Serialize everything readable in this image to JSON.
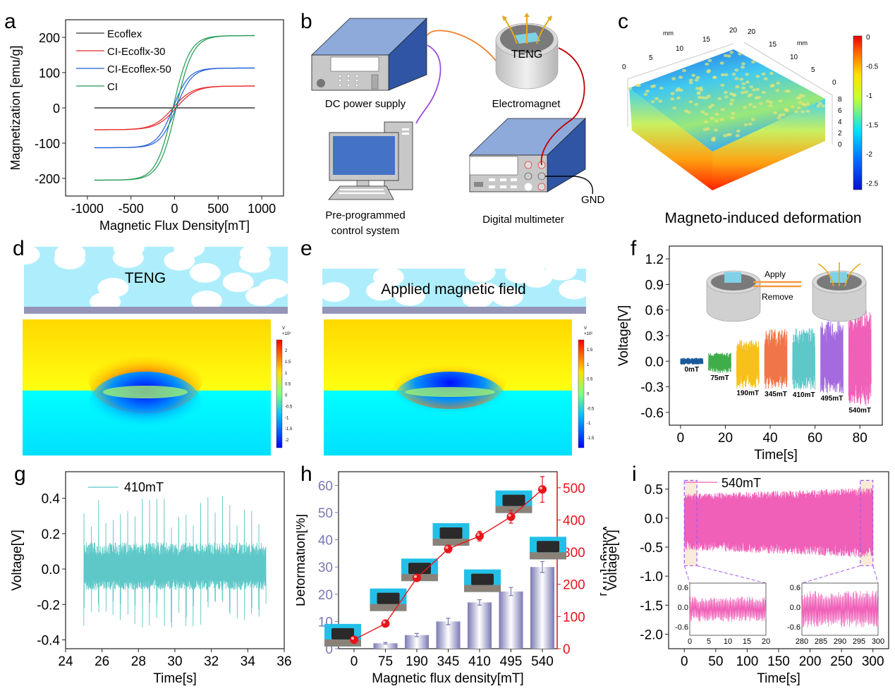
{
  "figure": {
    "panel_labels": [
      "a",
      "b",
      "c",
      "d",
      "e",
      "f",
      "g",
      "h",
      "i"
    ]
  },
  "panel_a": {
    "chart_data": {
      "type": "line",
      "title": "",
      "xlabel": "Magnetic Flux Density[mT]",
      "ylabel": "Magnetization [emu/g]",
      "xlim": [
        -1250,
        1250
      ],
      "ylim": [
        -250,
        250
      ],
      "xticks": [
        -1000,
        -500,
        0,
        500,
        1000
      ],
      "yticks": [
        -200,
        -100,
        0,
        100,
        200
      ],
      "legend_position": "top-left",
      "series": [
        {
          "name": "Ecoflex",
          "color": "#333333",
          "saturation": 0,
          "shape": 0.004
        },
        {
          "name": "CI-Ecoflx-30",
          "color": "#e8262a",
          "saturation": 62,
          "shape": 0.0045
        },
        {
          "name": "CI-Ecoflex-50",
          "color": "#1f5fd6",
          "saturation": 113,
          "shape": 0.0055
        },
        {
          "name": "CI",
          "color": "#1f9a50",
          "saturation": 205,
          "shape": 0.0052
        }
      ],
      "x_range": [
        -920,
        920
      ]
    }
  },
  "panel_b": {
    "labels": {
      "dc_power": "DC power supply",
      "electromagnet": "Electromagnet",
      "teng": "TENG",
      "control1": "Pre-programmed",
      "control2": "control system",
      "multimeter": "Digital multimeter",
      "gnd": "GND"
    },
    "colors": {
      "device_top": "#8eaadb",
      "device_side": "#2f55a4",
      "device_front": "#c8c8c8",
      "wire_orange": "#f07f2f",
      "wire_purple": "#9b4be0",
      "wire_red": "#c00000"
    }
  },
  "panel_c": {
    "caption": "Magneto-induced deformation",
    "axis_unit": "mm",
    "x_ticks": [
      "0",
      "5",
      "10",
      "15",
      "20"
    ],
    "y_ticks": [
      "20",
      "15",
      "10",
      "5",
      "0"
    ],
    "z_ticks": [
      "8",
      "6",
      "4",
      "2",
      "0"
    ],
    "colorbar_ticks": [
      "0",
      "-0.5",
      "-1",
      "-1.5",
      "-2",
      "-2.5"
    ]
  },
  "panel_d": {
    "label": "TENG",
    "colorbar_unit": "V",
    "colorbar_scale": "×10²",
    "colorbar_ticks": [
      "2",
      "1.5",
      "1",
      "0.5",
      "0",
      "-0.5",
      "-1",
      "-1.5",
      "-2"
    ]
  },
  "panel_e": {
    "label": "Applied magnetic field",
    "colorbar_unit": "V",
    "colorbar_scale": "×10²",
    "colorbar_ticks": [
      "1.5",
      "1",
      "0.5",
      "0",
      "-0.5",
      "-1",
      "-1.5"
    ]
  },
  "panel_f": {
    "chart_data": {
      "type": "line",
      "xlabel": "Time[s]",
      "ylabel": "Voltage[V]",
      "xlim": [
        -5,
        90
      ],
      "ylim": [
        -0.75,
        1.35
      ],
      "xticks": [
        0,
        20,
        40,
        60,
        80
      ],
      "yticks": [
        -0.6,
        -0.3,
        0.0,
        0.3,
        0.6,
        0.9,
        1.2
      ],
      "series": [
        {
          "name": "0mT",
          "color": "#1a5a9a",
          "t": [
            0,
            10
          ],
          "amp_pos": 0.04,
          "amp_neg": 0.04
        },
        {
          "name": "75mT",
          "color": "#3fae49",
          "t": [
            12.5,
            22.5
          ],
          "amp_pos": 0.1,
          "amp_neg": 0.14
        },
        {
          "name": "190mT",
          "color": "#f8c01a",
          "t": [
            25,
            35
          ],
          "amp_pos": 0.25,
          "amp_neg": 0.32
        },
        {
          "name": "345mT",
          "color": "#f07548",
          "t": [
            37.5,
            47.5
          ],
          "amp_pos": 0.38,
          "amp_neg": 0.33
        },
        {
          "name": "410mT",
          "color": "#5ec8c8",
          "t": [
            50,
            60
          ],
          "amp_pos": 0.39,
          "amp_neg": 0.34
        },
        {
          "name": "495mT",
          "color": "#a56ae0",
          "t": [
            62.5,
            72.5
          ],
          "amp_pos": 0.47,
          "amp_neg": 0.38
        },
        {
          "name": "540mT",
          "color": "#f060b8",
          "t": [
            75,
            85
          ],
          "amp_pos": 0.6,
          "amp_neg": 0.52
        }
      ],
      "inset": {
        "apply": "Apply",
        "remove": "Remove"
      }
    }
  },
  "panel_g": {
    "chart_data": {
      "type": "line",
      "xlabel": "Time[s]",
      "ylabel": "Voltage[V]",
      "xlim": [
        24,
        36
      ],
      "ylim": [
        -0.45,
        0.55
      ],
      "xticks": [
        24,
        26,
        28,
        30,
        32,
        34,
        36
      ],
      "yticks": [
        -0.4,
        -0.2,
        0.0,
        0.2,
        0.4
      ],
      "legend": "410mT",
      "legend_position": "top-left",
      "series": [
        {
          "name": "410mT",
          "color": "#5ec8c8",
          "t": [
            25,
            35
          ],
          "peak_max": 0.43,
          "trough_min": -0.34,
          "cycles": 25
        }
      ]
    }
  },
  "panel_h": {
    "chart_data": {
      "type": "bar",
      "xlabel": "Magnetic flux density[mT]",
      "ylabel": "Deformation[%]",
      "ylabel_right": "Voltage[mV]",
      "categories": [
        "0",
        "75",
        "190",
        "345",
        "410",
        "495",
        "540"
      ],
      "ylim": [
        0,
        65
      ],
      "yticks": [
        0,
        10,
        20,
        30,
        40,
        50,
        60
      ],
      "ylim_right": [
        0,
        550
      ],
      "yticks_right": [
        0,
        100,
        200,
        300,
        400,
        500
      ],
      "series": [
        {
          "name": "Deformation",
          "axis": "left",
          "type": "bar",
          "color": "#7a78b4",
          "values": [
            0,
            2,
            5,
            10,
            17,
            21,
            30
          ],
          "errors": [
            0,
            0.3,
            0.6,
            1.2,
            1.0,
            1.5,
            2.0
          ]
        },
        {
          "name": "Voltage",
          "axis": "right",
          "type": "line",
          "color": "#e8141b",
          "values": [
            28,
            78,
            220,
            310,
            350,
            410,
            495
          ],
          "errors": [
            0,
            0,
            0,
            12,
            15,
            20,
            40
          ]
        }
      ]
    }
  },
  "panel_i": {
    "chart_data": {
      "type": "line",
      "xlabel": "Time[s]",
      "ylabel": "Voltage[V]",
      "xlim": [
        -25,
        325
      ],
      "ylim": [
        -2.25,
        0.8
      ],
      "xticks": [
        0,
        50,
        100,
        150,
        200,
        250,
        300
      ],
      "yticks": [
        -2.0,
        -1.5,
        -1.0,
        -0.5,
        0.0,
        0.5
      ],
      "legend": "540mT",
      "legend_position": "top-left",
      "series": [
        {
          "name": "540mT",
          "color": "#f060b8",
          "t": [
            0,
            300
          ],
          "amp_pos": 0.42,
          "amp_neg": -0.55
        }
      ],
      "insets": [
        {
          "xlim": [
            0,
            20
          ],
          "xticks": [
            "0",
            "5",
            "10",
            "15",
            "20"
          ],
          "yticks": [
            "0.6",
            "0.0",
            "-0.6"
          ]
        },
        {
          "xlim": [
            280,
            300
          ],
          "xticks": [
            "280",
            "285",
            "290",
            "295",
            "300"
          ],
          "yticks": [
            "0.6",
            "0.0",
            "-0.6"
          ]
        }
      ]
    }
  }
}
